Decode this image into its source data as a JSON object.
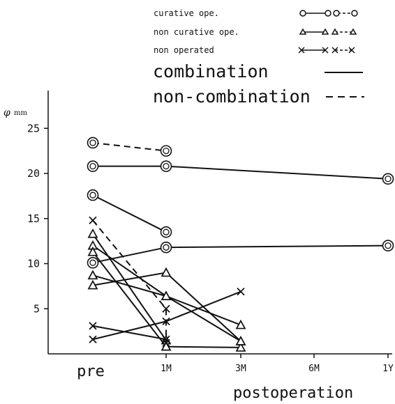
{
  "chart_data": {
    "type": "line",
    "ylabel": "φ",
    "ylabel_unit": "mm",
    "xlabel": "postoperation",
    "x_categories": [
      "pre",
      "1M",
      "3M",
      "6M",
      "1Y"
    ],
    "y_ticks": [
      5,
      10,
      15,
      20,
      25
    ],
    "ylim": [
      0,
      28
    ],
    "legend": {
      "markers": [
        {
          "label": "curative ope.",
          "marker": "circle"
        },
        {
          "label": "non curative ope.",
          "marker": "triangle"
        },
        {
          "label": "non operated",
          "marker": "cross"
        }
      ],
      "lines": [
        {
          "label": "combination",
          "style": "solid"
        },
        {
          "label": "non-combination",
          "style": "dashed"
        }
      ]
    },
    "series": [
      {
        "marker": "circle",
        "style": "dashed",
        "points": [
          [
            "pre",
            23.4
          ],
          [
            "1M",
            22.5
          ]
        ]
      },
      {
        "marker": "circle",
        "style": "solid",
        "points": [
          [
            "pre",
            20.8
          ],
          [
            "1M",
            20.8
          ],
          [
            "1Y",
            19.4
          ]
        ]
      },
      {
        "marker": "circle",
        "style": "solid",
        "points": [
          [
            "pre",
            17.6
          ],
          [
            "1M",
            13.5
          ]
        ]
      },
      {
        "marker": "circle",
        "style": "solid",
        "points": [
          [
            "pre",
            10.1
          ],
          [
            "1M",
            11.8
          ],
          [
            "1Y",
            12.0
          ]
        ]
      },
      {
        "marker": "triangle",
        "style": "solid",
        "points": [
          [
            "pre",
            13.3
          ],
          [
            "1M",
            1.5
          ]
        ]
      },
      {
        "marker": "triangle",
        "style": "solid",
        "points": [
          [
            "pre",
            12.0
          ],
          [
            "1M",
            6.4
          ],
          [
            "3M",
            1.4
          ]
        ]
      },
      {
        "marker": "triangle",
        "style": "solid",
        "points": [
          [
            "pre",
            11.3
          ],
          [
            "1M",
            0.8
          ],
          [
            "3M",
            0.7
          ]
        ]
      },
      {
        "marker": "triangle",
        "style": "solid",
        "points": [
          [
            "pre",
            8.7
          ],
          [
            "1M",
            6.4
          ],
          [
            "3M",
            3.2
          ]
        ]
      },
      {
        "marker": "triangle",
        "style": "solid",
        "points": [
          [
            "pre",
            7.6
          ],
          [
            "1M",
            9.0
          ],
          [
            "3M",
            1.4
          ]
        ]
      },
      {
        "marker": "cross",
        "style": "dashed",
        "points": [
          [
            "pre",
            14.8
          ],
          [
            "1M",
            5.0
          ],
          [
            "1M",
            1.2
          ]
        ]
      },
      {
        "marker": "cross",
        "style": "solid",
        "points": [
          [
            "pre",
            3.1
          ],
          [
            "1M",
            1.6
          ]
        ]
      },
      {
        "marker": "cross",
        "style": "solid",
        "points": [
          [
            "pre",
            1.6
          ],
          [
            "1M",
            3.6
          ],
          [
            "3M",
            6.9
          ]
        ]
      }
    ]
  }
}
